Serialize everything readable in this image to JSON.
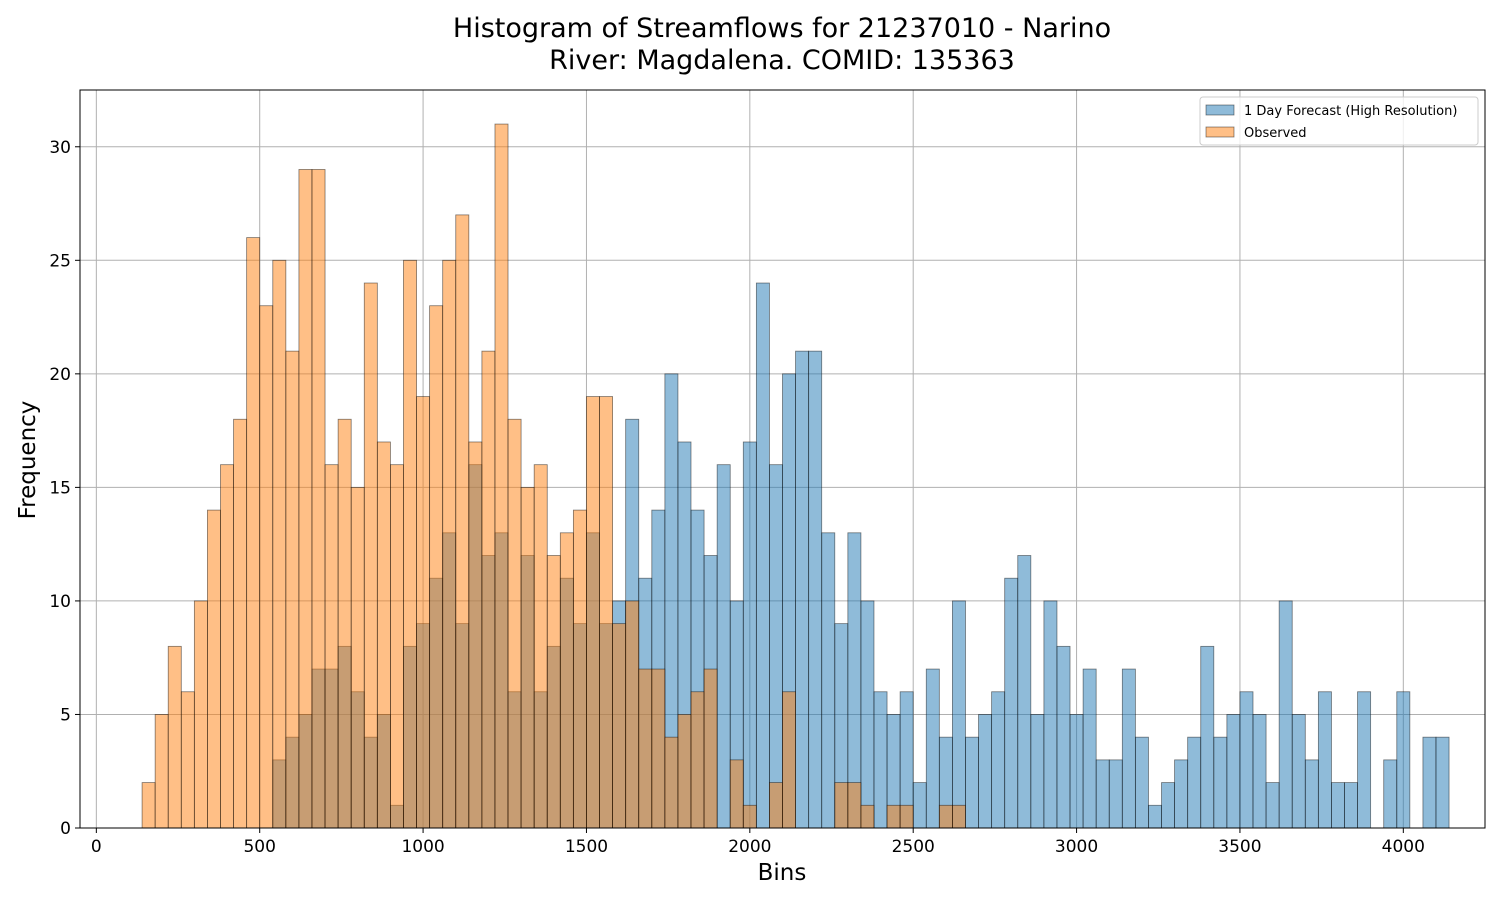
{
  "chart_data": {
    "type": "bar",
    "title_line1": "Histogram of Streamflows for 21237010 - Narino",
    "title_line2": "River: Magdalena. COMID: 135363",
    "xlabel": "Bins",
    "ylabel": "Frequency",
    "xlim": [
      -50,
      4250
    ],
    "ylim": [
      0,
      32.5
    ],
    "xticks": [
      0,
      500,
      1000,
      1500,
      2000,
      2500,
      3000,
      3500,
      4000
    ],
    "yticks": [
      0,
      5,
      10,
      15,
      20,
      25,
      30
    ],
    "grid": true,
    "legend_position": "top-right",
    "series": [
      {
        "name": "1 Day Forecast (High Resolution)",
        "color": "#1f77b4",
        "opacity": 0.5,
        "bin_start": 540,
        "bin_width": 40,
        "values": [
          3,
          4,
          5,
          7,
          7,
          8,
          6,
          4,
          5,
          1,
          8,
          9,
          11,
          13,
          9,
          16,
          12,
          13,
          6,
          12,
          6,
          8,
          11,
          9,
          13,
          9,
          10,
          18,
          11,
          14,
          20,
          17,
          14,
          12,
          16,
          10,
          17,
          24,
          16,
          20,
          21,
          21,
          13,
          9,
          13,
          10,
          6,
          5,
          6,
          2,
          7,
          4,
          10,
          4,
          5,
          6,
          11,
          12,
          5,
          10,
          8,
          5,
          7,
          3,
          3,
          7,
          4,
          1,
          2,
          3,
          4,
          8,
          4,
          5,
          6,
          5,
          2,
          10,
          5,
          3,
          6,
          2,
          2,
          6,
          0,
          3,
          6,
          0,
          4,
          4
        ]
      },
      {
        "name": "Observed",
        "color": "#ff7f0e",
        "opacity": 0.5,
        "bin_start": 140,
        "bin_width": 40,
        "values": [
          2,
          5,
          8,
          6,
          10,
          14,
          16,
          18,
          26,
          23,
          25,
          21,
          29,
          29,
          16,
          18,
          15,
          24,
          17,
          16,
          25,
          19,
          23,
          25,
          27,
          17,
          21,
          31,
          18,
          15,
          16,
          12,
          13,
          14,
          19,
          19,
          9,
          10,
          7,
          7,
          4,
          5,
          6,
          7,
          0,
          3,
          1,
          0,
          2,
          6,
          0,
          0,
          0,
          2,
          2,
          1,
          0,
          1,
          1,
          0,
          0,
          1,
          1
        ]
      }
    ]
  }
}
